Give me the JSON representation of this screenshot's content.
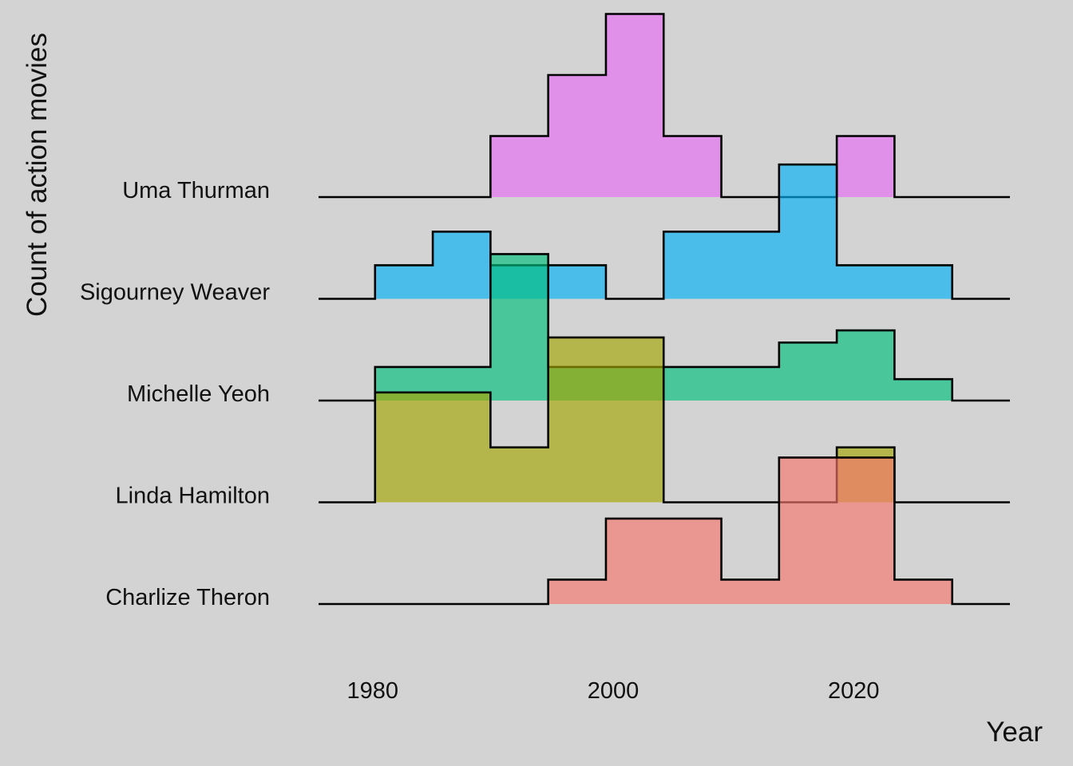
{
  "chart_data": {
    "type": "area",
    "subtype": "ridgeline-histogram",
    "xlabel": "Year",
    "ylabel": "Count of action movies",
    "xlim": [
      1975.5,
      2033
    ],
    "x_ticks": [
      1980,
      2000,
      2020
    ],
    "bin_width": 4.8,
    "bin_starts": [
      1980.2,
      1985.0,
      1989.8,
      1994.6,
      1999.4,
      2004.2,
      2009.0,
      2013.8,
      2018.6,
      2023.4
    ],
    "grid": false,
    "legend": "none",
    "series": [
      {
        "name": "Charlize Theron",
        "color": "#F8766D",
        "values": [
          0,
          0,
          0,
          0.4,
          1.4,
          1.4,
          0.4,
          2.4,
          2.4,
          0.4
        ]
      },
      {
        "name": "Linda Hamilton",
        "color": "#A3A500",
        "values": [
          1.8,
          1.8,
          0.9,
          2.7,
          2.7,
          0,
          0,
          0,
          0.9,
          0
        ]
      },
      {
        "name": "Michelle Yeoh",
        "color": "#00BF7D",
        "values": [
          0.55,
          0.55,
          2.4,
          0.55,
          0.55,
          0.55,
          0.55,
          0.95,
          1.15,
          0.35
        ]
      },
      {
        "name": "Sigourney Weaver",
        "color": "#00B0F6",
        "values": [
          0.55,
          1.1,
          0.55,
          0.55,
          0,
          1.1,
          1.1,
          2.2,
          0.55,
          0.55
        ]
      },
      {
        "name": "Uma Thurman",
        "color": "#E76BF3",
        "values": [
          0,
          0,
          1.0,
          2.0,
          3.0,
          1.0,
          0,
          0,
          1.0,
          0
        ]
      }
    ]
  }
}
